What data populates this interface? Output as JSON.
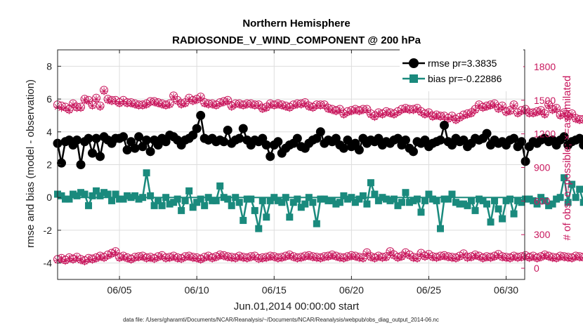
{
  "chart_data": {
    "type": "line",
    "title_line1": "Northern Hemisphere",
    "title_line2": "RADIOSONDE_V_WIND_COMPONENT @ 200 hPa",
    "xlabel": "Jun.01,2014 00:00:00 start",
    "ylabel_left": "rmse and bias (model - observation)",
    "ylabel_right": "# of obs: o=possible; ×=assimilated",
    "footnote": "data file: /Users/gharamti/Documents/NCAR/Reanalysis/~/Documents/NCAR/Reanalysis/webpub/obs_diag_output_2014-06.nc",
    "xlim": [
      1,
      31.2
    ],
    "ylim_left": [
      -5,
      9
    ],
    "ylim_right": [
      -100,
      1950
    ],
    "x_ticks": [
      5,
      10,
      15,
      20,
      25,
      30
    ],
    "x_tick_labels": [
      "06/05",
      "06/10",
      "06/15",
      "06/20",
      "06/25",
      "06/30"
    ],
    "y_left_ticks": [
      -4,
      -2,
      0,
      2,
      4,
      6,
      8
    ],
    "y_left_tick_labels": [
      "-4",
      "-2",
      "0",
      "2",
      "4",
      "6",
      "8"
    ],
    "y_right_ticks": [
      0,
      300,
      600,
      900,
      1200,
      1500,
      1800
    ],
    "y_right_tick_labels": [
      "0",
      "300",
      "600",
      "900",
      "1200",
      "1500",
      "1800"
    ],
    "step_days": 0.25,
    "legend": {
      "position": "top-right",
      "rmse_label": "rmse pr=3.3835",
      "bias_label": "bias pr=-0.22886"
    },
    "colors": {
      "rmse": "#000000",
      "bias": "#1a8a7d",
      "obs": "#c8175d"
    },
    "rmse": [
      3.3,
      2.1,
      3.4,
      3.5,
      3.2,
      3.5,
      2.0,
      3.4,
      3.6,
      2.7,
      3.6,
      2.5,
      3.7,
      3.5,
      3.3,
      3.6,
      3.6,
      3.7,
      2.9,
      3.4,
      3.0,
      3.7,
      3.1,
      3.5,
      2.8,
      3.5,
      3.2,
      3.6,
      3.4,
      3.8,
      3.7,
      3.5,
      3.2,
      3.5,
      3.6,
      3.8,
      4.2,
      5.0,
      3.6,
      3.5,
      3.6,
      3.4,
      3.5,
      3.4,
      4.1,
      3.3,
      3.5,
      3.6,
      4.2,
      3.5,
      3.2,
      3.5,
      3.4,
      3.6,
      3.2,
      2.5,
      3.2,
      3.4,
      2.7,
      3.0,
      3.2,
      3.3,
      3.6,
      3.1,
      3.0,
      3.3,
      3.5,
      3.6,
      4.0,
      3.3,
      3.5,
      3.4,
      3.6,
      3.2,
      3.0,
      3.5,
      3.1,
      3.3,
      2.9,
      3.6,
      3.3,
      3.5,
      3.4,
      3.6,
      3.2,
      3.4,
      3.3,
      3.5,
      3.6,
      3.2,
      3.5,
      3.0,
      2.8,
      3.4,
      3.3,
      3.5,
      3.1,
      3.3,
      3.4,
      3.5,
      4.4,
      3.4,
      3.2,
      3.6,
      3.4,
      3.5,
      3.1,
      3.3,
      3.6,
      3.5,
      3.6,
      3.9,
      3.2,
      3.5,
      3.3,
      3.4,
      3.2,
      3.5,
      3.6,
      3.1,
      3.4,
      2.2,
      3.1,
      3.4,
      3.3,
      3.5,
      3.6,
      3.4,
      3.5,
      3.2,
      3.5,
      3.7,
      3.2,
      3.4,
      3.5,
      3.6,
      3.2,
      3.1,
      4.7,
      3.2,
      3.3,
      3.7
    ],
    "bias": [
      0.2,
      0.1,
      -0.1,
      -0.1,
      0.2,
      0.1,
      0.3,
      0.2,
      -0.5,
      0.1,
      0.4,
      0.1,
      0.3,
      0.2,
      -0.2,
      0.2,
      -0.1,
      -0.1,
      0.1,
      0.0,
      0.1,
      -0.1,
      0.0,
      1.5,
      0.1,
      -0.5,
      -0.2,
      -0.5,
      0.0,
      -0.4,
      -0.3,
      -0.1,
      -0.8,
      -0.2,
      0.4,
      -0.6,
      -0.3,
      -0.1,
      -0.5,
      0.0,
      -0.2,
      -0.2,
      0.7,
      0.0,
      -0.1,
      -0.5,
      0.0,
      -0.3,
      -1.4,
      -0.1,
      -0.1,
      -0.8,
      -1.9,
      -0.2,
      -1.2,
      -0.2,
      0.0,
      -0.2,
      -0.3,
      0.0,
      -1.2,
      -0.3,
      -0.1,
      -0.6,
      -0.4,
      0.0,
      -0.3,
      -1.6,
      -0.1,
      -0.1,
      -0.2,
      -0.2,
      -0.4,
      -0.3,
      0.1,
      -0.1,
      0.0,
      -0.3,
      -0.1,
      0.1,
      -0.4,
      0.9,
      0.2,
      -0.2,
      0.0,
      -0.1,
      -0.2,
      -0.1,
      -0.5,
      -0.3,
      0.3,
      -0.3,
      -0.2,
      -0.1,
      -0.9,
      -0.2,
      0.2,
      -0.1,
      -0.2,
      -1.9,
      -0.1,
      -0.1,
      0.2,
      -0.3,
      -0.4,
      -0.4,
      -0.5,
      -0.2,
      -0.8,
      -0.1,
      -0.2,
      -0.4,
      -1.5,
      -0.2,
      -0.7,
      -1.3,
      -0.2,
      -0.1,
      -1.0,
      -0.2,
      -0.3,
      -0.1,
      -0.1,
      -0.2,
      -0.4,
      0.0,
      -0.2,
      -0.5,
      -0.4,
      -0.1,
      0.0,
      1.2,
      -0.3,
      0.8,
      0.0,
      0.5,
      -0.3,
      0.5,
      -0.1,
      -0.6,
      0.2,
      0.9
    ],
    "obs_possible": [
      1460,
      1450,
      1440,
      1420,
      1470,
      1440,
      1440,
      1510,
      1500,
      1460,
      1520,
      1450,
      1590,
      1510,
      1500,
      1500,
      1480,
      1500,
      1480,
      1480,
      1470,
      1460,
      1460,
      1470,
      1490,
      1490,
      1480,
      1470,
      1460,
      1470,
      1540,
      1500,
      1470,
      1480,
      1520,
      1500,
      1510,
      1530,
      1480,
      1470,
      1470,
      1460,
      1480,
      1490,
      1500,
      1450,
      1470,
      1470,
      1460,
      1470,
      1470,
      1460,
      1460,
      1430,
      1440,
      1470,
      1460,
      1470,
      1460,
      1450,
      1440,
      1460,
      1470,
      1470,
      1480,
      1450,
      1440,
      1460,
      1460,
      1460,
      1430,
      1420,
      1410,
      1420,
      1380,
      1400,
      1410,
      1420,
      1410,
      1420,
      1420,
      1380,
      1360,
      1390,
      1380,
      1400,
      1390,
      1380,
      1400,
      1420,
      1430,
      1420,
      1420,
      1430,
      1400,
      1380,
      1390,
      1360,
      1370,
      1360,
      1360,
      1340,
      1360,
      1330,
      1350,
      1370,
      1380,
      1390,
      1420,
      1460,
      1440,
      1450,
      1460,
      1470,
      1430,
      1450,
      1400,
      1410,
      1460,
      1390,
      1410,
      1420,
      1390,
      1390,
      1400,
      1410,
      1380,
      1460,
      1420,
      1430,
      1370,
      1390,
      1360,
      1380,
      1340,
      1330,
      1330,
      1360,
      1320,
      1370,
      1340,
      1410
    ],
    "obs_assimilated": [
      1440,
      1430,
      1430,
      1410,
      1460,
      1430,
      1430,
      1500,
      1490,
      1450,
      1510,
      1440,
      1580,
      1500,
      1490,
      1490,
      1470,
      1490,
      1470,
      1470,
      1460,
      1450,
      1450,
      1460,
      1480,
      1480,
      1470,
      1460,
      1450,
      1460,
      1530,
      1490,
      1460,
      1470,
      1510,
      1490,
      1500,
      1520,
      1470,
      1460,
      1460,
      1450,
      1470,
      1480,
      1490,
      1440,
      1460,
      1460,
      1450,
      1460,
      1460,
      1450,
      1450,
      1420,
      1430,
      1460,
      1450,
      1460,
      1450,
      1440,
      1430,
      1450,
      1460,
      1460,
      1470,
      1440,
      1430,
      1450,
      1450,
      1450,
      1420,
      1410,
      1400,
      1410,
      1370,
      1390,
      1400,
      1410,
      1400,
      1410,
      1410,
      1370,
      1350,
      1380,
      1370,
      1390,
      1380,
      1370,
      1390,
      1410,
      1420,
      1410,
      1410,
      1420,
      1390,
      1370,
      1380,
      1350,
      1360,
      1350,
      1350,
      1330,
      1350,
      1320,
      1340,
      1360,
      1370,
      1380,
      1410,
      1450,
      1430,
      1440,
      1450,
      1460,
      1420,
      1440,
      1390,
      1400,
      1450,
      1380,
      1400,
      1410,
      1380,
      1380,
      1390,
      1400,
      1370,
      1450,
      1410,
      1420,
      1360,
      1380,
      1350,
      1370,
      1330,
      1320,
      1320,
      1350,
      1310,
      1360,
      1330,
      1400
    ],
    "obs_possible_low": [
      80,
      90,
      75,
      95,
      85,
      100,
      80,
      70,
      90,
      85,
      95,
      110,
      100,
      120,
      135,
      150,
      100,
      110,
      95,
      85,
      100,
      105,
      110,
      95,
      100,
      90,
      105,
      115,
      95,
      100,
      110,
      95,
      90,
      105,
      110,
      100,
      95,
      85,
      100,
      110,
      95,
      105,
      120,
      115,
      105,
      100,
      95,
      110,
      100,
      95,
      105,
      110,
      90,
      95,
      100,
      110,
      105,
      95,
      100,
      110,
      120,
      105,
      95,
      100,
      110,
      115,
      105,
      100,
      95,
      105,
      110,
      120,
      110,
      100,
      95,
      105,
      115,
      110,
      100,
      95,
      140,
      105,
      95,
      110,
      100,
      105,
      150,
      120,
      100,
      110,
      140,
      120,
      100,
      95,
      135,
      110,
      125,
      105,
      100,
      110,
      115,
      105,
      100,
      95,
      110,
      130,
      100,
      105,
      120,
      110,
      95,
      105,
      100,
      110,
      125,
      105,
      100,
      95,
      110,
      100,
      105,
      115,
      100,
      110,
      95,
      105,
      120,
      110,
      100,
      95,
      110,
      105,
      100,
      95,
      110,
      105,
      100,
      95,
      130,
      140,
      60,
      0
    ],
    "obs_assimilated_low": [
      70,
      80,
      65,
      85,
      75,
      90,
      70,
      60,
      80,
      75,
      85,
      100,
      90,
      110,
      125,
      140,
      90,
      100,
      85,
      75,
      90,
      95,
      100,
      85,
      90,
      80,
      95,
      105,
      85,
      90,
      100,
      85,
      80,
      95,
      100,
      90,
      85,
      75,
      90,
      100,
      85,
      95,
      110,
      105,
      95,
      90,
      85,
      100,
      90,
      85,
      95,
      100,
      80,
      85,
      90,
      100,
      95,
      85,
      90,
      100,
      110,
      95,
      85,
      90,
      100,
      105,
      95,
      90,
      85,
      95,
      100,
      110,
      100,
      90,
      85,
      95,
      105,
      100,
      90,
      85,
      130,
      95,
      85,
      100,
      90,
      95,
      140,
      110,
      90,
      100,
      130,
      110,
      90,
      85,
      125,
      100,
      115,
      95,
      90,
      100,
      105,
      95,
      90,
      85,
      100,
      120,
      90,
      95,
      110,
      100,
      85,
      95,
      90,
      100,
      115,
      95,
      90,
      85,
      100,
      90,
      95,
      105,
      90,
      100,
      85,
      95,
      110,
      100,
      90,
      85,
      100,
      95,
      90,
      85,
      100,
      95,
      90,
      85,
      120,
      130,
      50,
      0
    ]
  }
}
